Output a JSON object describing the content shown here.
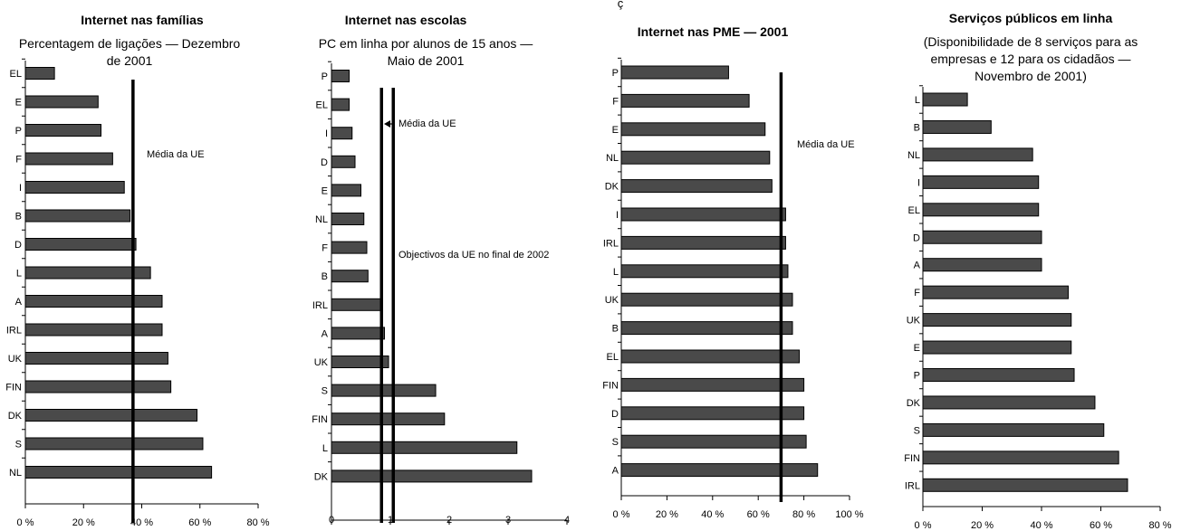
{
  "page": {
    "top_fragment": "ç"
  },
  "chart_data": [
    {
      "id": "familias",
      "type": "bar",
      "orientation": "horizontal",
      "title": "Internet nas famílias",
      "subtitle": [
        "Percentagem de ligações — Dezembro",
        "de 2001"
      ],
      "categories": [
        "EL",
        "E",
        "P",
        "F",
        "I",
        "B",
        "D",
        "L",
        "A",
        "IRL",
        "UK",
        "FIN",
        "DK",
        "S",
        "NL"
      ],
      "values": [
        10,
        25,
        26,
        30,
        34,
        36,
        38,
        43,
        47,
        47,
        49,
        50,
        59,
        61,
        64
      ],
      "xlim": [
        0,
        80
      ],
      "xticks": [
        0,
        20,
        40,
        60,
        80
      ],
      "xtick_labels": [
        "0 %",
        "20 %",
        "40 %",
        "60 %",
        "80 %"
      ],
      "reference_lines": [
        {
          "value": 37,
          "label": "Média da UE"
        }
      ]
    },
    {
      "id": "escolas",
      "type": "bar",
      "orientation": "horizontal",
      "title": "Internet nas escolas",
      "subtitle": [
        "PC em linha por alunos de 15 anos —",
        "Maio de 2001"
      ],
      "categories": [
        "P",
        "EL",
        "I",
        "D",
        "E",
        "NL",
        "F",
        "B",
        "IRL",
        "A",
        "UK",
        "S",
        "FIN",
        "L",
        "DK"
      ],
      "values": [
        0.3,
        0.3,
        0.35,
        0.4,
        0.5,
        0.55,
        0.6,
        0.62,
        0.85,
        0.9,
        0.97,
        1.77,
        1.92,
        3.15,
        3.4
      ],
      "xlim": [
        0,
        4
      ],
      "xticks": [
        0,
        1,
        2,
        3,
        4
      ],
      "xtick_labels": [
        "0",
        "1",
        "2",
        "3",
        "4"
      ],
      "reference_lines": [
        {
          "value": 0.85,
          "label": "Média da UE"
        },
        {
          "value": 1.05,
          "label": "Objectivos da UE no final de 2002"
        }
      ]
    },
    {
      "id": "pme",
      "type": "bar",
      "orientation": "horizontal",
      "title": "Internet nas PME — 2001",
      "subtitle": [],
      "categories": [
        "P",
        "F",
        "E",
        "NL",
        "DK",
        "I",
        "IRL",
        "L",
        "UK",
        "B",
        "EL",
        "FIN",
        "D",
        "S",
        "A"
      ],
      "values": [
        47,
        56,
        63,
        65,
        66,
        72,
        72,
        73,
        75,
        75,
        78,
        80,
        80,
        81,
        86
      ],
      "xlim": [
        0,
        100
      ],
      "xticks": [
        0,
        20,
        40,
        60,
        80,
        100
      ],
      "xtick_labels": [
        "0 %",
        "20 %",
        "40 %",
        "60 %",
        "80 %",
        "100 %"
      ],
      "reference_lines": [
        {
          "value": 70,
          "label": "Média da UE"
        }
      ]
    },
    {
      "id": "servicos",
      "type": "bar",
      "orientation": "horizontal",
      "title": "Serviços públicos em linha",
      "subtitle": [
        "(Disponibilidade de 8 serviços para as",
        "empresas e 12 para os cidadãos —",
        "Novembro de  2001)"
      ],
      "categories": [
        "L",
        "B",
        "NL",
        "I",
        "EL",
        "D",
        "A",
        "F",
        "UK",
        "E",
        "P",
        "DK",
        "S",
        "FIN",
        "IRL"
      ],
      "values": [
        15,
        23,
        37,
        39,
        39,
        40,
        40,
        49,
        50,
        50,
        51,
        58,
        61,
        66,
        69
      ],
      "xlim": [
        0,
        80
      ],
      "xticks": [
        0,
        20,
        40,
        60,
        80
      ],
      "xtick_labels": [
        "0 %",
        "20 %",
        "40 %",
        "60 %",
        "80 %"
      ],
      "reference_lines": []
    }
  ]
}
